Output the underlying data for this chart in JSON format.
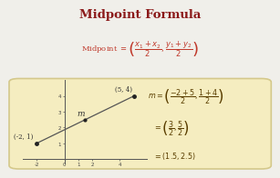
{
  "title": "Midpoint Formula",
  "title_color": "#8B1A1A",
  "bg_color": "#f0efea",
  "cream_bg": "#f5edc0",
  "formula_color": "#c0392b",
  "point1": [
    -2,
    1
  ],
  "point2": [
    5,
    4
  ],
  "midpoint": [
    1.5,
    2.5
  ],
  "point1_label": "(-2, 1)",
  "point2_label": "(5, 4)",
  "m_label": "m",
  "graph_xlim": [
    -3,
    6
  ],
  "graph_ylim": [
    -0.3,
    5
  ],
  "graph_xticks": [
    -2,
    0,
    1,
    2,
    4
  ],
  "graph_yticks": [
    1,
    2,
    3,
    4
  ],
  "line_color": "#555555",
  "dot_color": "#222222",
  "calc_color": "#5a3e00",
  "axis_color": "#555555",
  "label_fontsize": 5.0,
  "tick_fontsize": 4.0
}
